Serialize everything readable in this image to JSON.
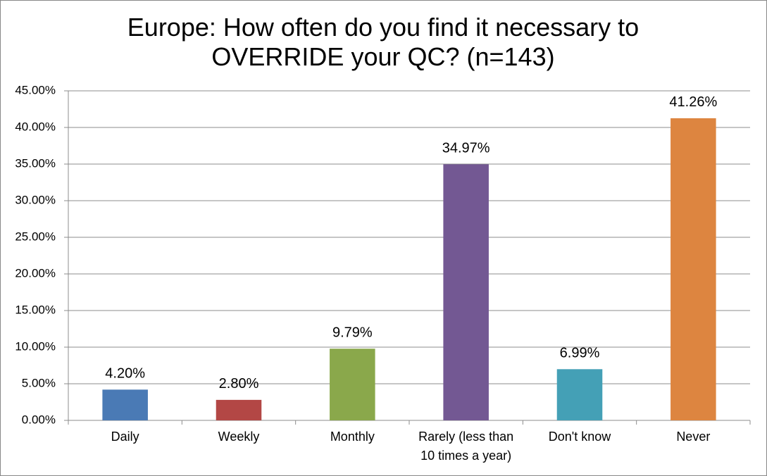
{
  "chart_data": {
    "type": "bar",
    "title": "Europe: How often do you find it necessary to OVERRIDE your QC? (n=143)",
    "categories": [
      "Daily",
      "Weekly",
      "Monthly",
      "Rarely (less than 10 times a year)",
      "Don't know",
      "Never"
    ],
    "values": [
      4.2,
      2.8,
      9.79,
      34.97,
      6.99,
      41.26
    ],
    "value_labels": [
      "4.20%",
      "2.80%",
      "9.79%",
      "34.97%",
      "6.99%",
      "41.26%"
    ],
    "colors": [
      "#4a7ab5",
      "#b34745",
      "#8aa84b",
      "#735893",
      "#44a0b6",
      "#dd8540"
    ],
    "ylim": [
      0,
      45
    ],
    "yticks": [
      {
        "value": 0,
        "label": "0.00%"
      },
      {
        "value": 5,
        "label": "5.00%"
      },
      {
        "value": 10,
        "label": "10.00%"
      },
      {
        "value": 15,
        "label": "15.00%"
      },
      {
        "value": 20,
        "label": "20.00%"
      },
      {
        "value": 25,
        "label": "25.00%"
      },
      {
        "value": 30,
        "label": "30.00%"
      },
      {
        "value": 35,
        "label": "35.00%"
      },
      {
        "value": 40,
        "label": "40.00%"
      },
      {
        "value": 45,
        "label": "45.00%"
      }
    ],
    "grid": true
  }
}
